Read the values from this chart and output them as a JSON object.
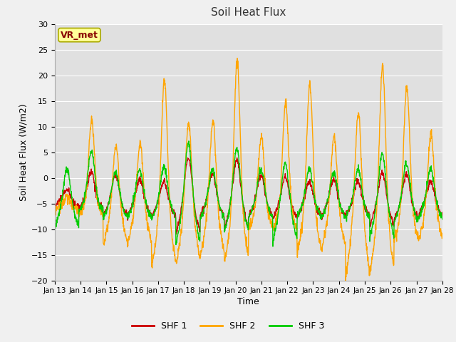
{
  "title": "Soil Heat Flux",
  "xlabel": "Time",
  "ylabel": "Soil Heat Flux (W/m2)",
  "ylim": [
    -20,
    30
  ],
  "yticks": [
    -20,
    -15,
    -10,
    -5,
    0,
    5,
    10,
    15,
    20,
    25,
    30
  ],
  "xtick_labels": [
    "Jan 13",
    "Jan 14",
    "Jan 15",
    "Jan 16",
    "Jan 17",
    "Jan 18",
    "Jan 19",
    "Jan 20",
    "Jan 21",
    "Jan 22",
    "Jan 23",
    "Jan 24",
    "Jan 25",
    "Jan 26",
    "Jan 27",
    "Jan 28"
  ],
  "colors": {
    "SHF 1": "#cc0000",
    "SHF 2": "#ffa500",
    "SHF 3": "#00cc00"
  },
  "label_box": "VR_met",
  "label_box_facecolor": "#ffff99",
  "label_box_edgecolor": "#aaaa00",
  "label_box_textcolor": "#880000",
  "background_color": "#e0e0e0",
  "grid_color": "#ffffff",
  "line_width": 1.0,
  "shf1_base": -4.5,
  "shf2_base": -5.0,
  "shf3_base": -4.5,
  "shf1_day_amps": [
    2.5,
    6.0,
    5.5,
    4.5,
    4.0,
    9.0,
    5.5,
    8.5,
    5.5,
    5.0,
    4.0,
    4.5,
    4.0,
    6.0,
    5.5,
    4.0
  ],
  "shf2_day_amps": [
    1.5,
    16.5,
    11.5,
    12.0,
    24.5,
    16.0,
    16.5,
    28.0,
    13.5,
    20.0,
    23.5,
    13.5,
    18.0,
    27.0,
    23.0,
    14.0
  ],
  "shf3_day_amps": [
    6.5,
    10.0,
    6.0,
    6.5,
    7.0,
    11.5,
    6.5,
    10.5,
    6.5,
    7.5,
    6.5,
    6.0,
    6.5,
    9.5,
    7.5,
    6.5
  ],
  "shf1_troughs": [
    -2.0,
    -2.5,
    -5.0,
    -5.0,
    -5.0,
    -10.0,
    -5.0,
    -8.5,
    -5.0,
    -5.5,
    -5.0,
    -5.5,
    -5.0,
    -8.0,
    -6.0,
    -5.0
  ],
  "shf2_troughs": [
    -2.0,
    -3.0,
    -10.5,
    -10.5,
    -16.0,
    -15.5,
    -13.5,
    -14.5,
    -6.5,
    -7.0,
    -12.5,
    -12.0,
    -18.5,
    -17.5,
    -9.5,
    -9.5
  ],
  "shf3_troughs": [
    -8.5,
    -3.5,
    -5.5,
    -5.5,
    -5.5,
    -13.5,
    -5.5,
    -9.5,
    -5.5,
    -12.5,
    -5.5,
    -5.5,
    -5.5,
    -11.5,
    -7.0,
    -5.5
  ]
}
